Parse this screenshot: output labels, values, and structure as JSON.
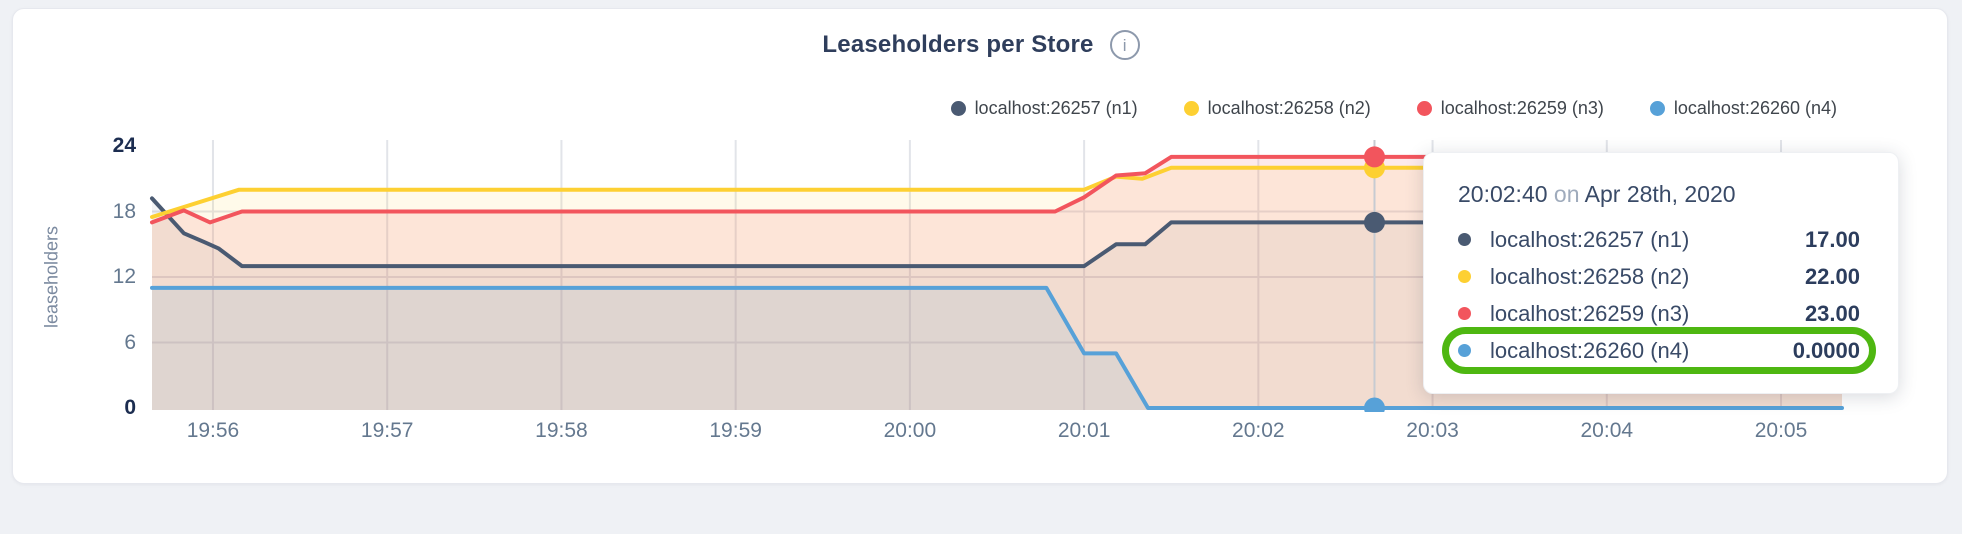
{
  "header": {
    "title": "Leaseholders per Store",
    "info_glyph": "i"
  },
  "legend": {
    "items": [
      {
        "label": "localhost:26257 (n1)",
        "color": "#4a5a72"
      },
      {
        "label": "localhost:26258 (n2)",
        "color": "#fdd032"
      },
      {
        "label": "localhost:26259 (n3)",
        "color": "#f2555d"
      },
      {
        "label": "localhost:26260 (n4)",
        "color": "#57a1d8"
      }
    ]
  },
  "chart_data": {
    "type": "line",
    "title": "Leaseholders per Store",
    "xlabel": "",
    "ylabel": "leaseholders",
    "ylim": [
      0,
      24
    ],
    "grid": true,
    "legend_position": "top-right",
    "x_domain": [
      "19:55:39",
      "20:05:21"
    ],
    "x_ticks": [
      "19:56",
      "19:57",
      "19:58",
      "19:59",
      "20:00",
      "20:01",
      "20:02",
      "20:03",
      "20:04",
      "20:05"
    ],
    "y_ticks": [
      {
        "label": "24",
        "value": 24,
        "strong": true
      },
      {
        "label": "18",
        "value": 18,
        "strong": false
      },
      {
        "label": "12",
        "value": 12,
        "strong": false
      },
      {
        "label": "6",
        "value": 6,
        "strong": false
      },
      {
        "label": "0",
        "value": 0,
        "strong": true
      }
    ],
    "series": [
      {
        "name": "localhost:26257 (n1)",
        "color": "#4a5a72",
        "fill_opacity": 0.07,
        "points": [
          [
            "19:55:39",
            19.2
          ],
          [
            "19:55:50",
            16
          ],
          [
            "19:55:57",
            15.2
          ],
          [
            "19:56:02",
            14.6
          ],
          [
            "19:56:10",
            13
          ],
          [
            "20:01:00",
            13
          ],
          [
            "20:01:11",
            15
          ],
          [
            "20:01:21",
            15
          ],
          [
            "20:01:30",
            17
          ],
          [
            "20:05:21",
            17
          ]
        ]
      },
      {
        "name": "localhost:26258 (n2)",
        "color": "#fdd032",
        "fill_opacity": 0.1,
        "points": [
          [
            "19:55:39",
            17.5
          ],
          [
            "19:56:09",
            20
          ],
          [
            "20:01:00",
            20
          ],
          [
            "20:01:11",
            21.2
          ],
          [
            "20:01:20",
            21
          ],
          [
            "20:01:30",
            22
          ],
          [
            "20:05:21",
            22
          ]
        ]
      },
      {
        "name": "localhost:26259 (n3)",
        "color": "#f2555d",
        "fill_opacity": 0.12,
        "points": [
          [
            "19:55:39",
            17
          ],
          [
            "19:55:50",
            18.1
          ],
          [
            "19:55:59",
            17
          ],
          [
            "19:56:10",
            18
          ],
          [
            "20:00:50",
            18
          ],
          [
            "20:01:00",
            19.3
          ],
          [
            "20:01:11",
            21.3
          ],
          [
            "20:01:21",
            21.5
          ],
          [
            "20:01:30",
            23
          ],
          [
            "20:05:21",
            23
          ]
        ]
      },
      {
        "name": "localhost:26260 (n4)",
        "color": "#57a1d8",
        "fill_opacity": 0.12,
        "points": [
          [
            "19:55:39",
            11
          ],
          [
            "20:00:47",
            11
          ],
          [
            "20:01:00",
            5
          ],
          [
            "20:01:11",
            5
          ],
          [
            "20:01:22",
            0
          ],
          [
            "20:05:21",
            0
          ]
        ]
      }
    ]
  },
  "tooltip": {
    "time": "20:02:40",
    "separator": "on",
    "date": "Apr 28th, 2020",
    "highlight_color": "#4eb711",
    "rows": [
      {
        "name": "localhost:26257 (n1)",
        "value": "17.00",
        "v": 17,
        "color": "#4a5a72",
        "highlighted": false
      },
      {
        "name": "localhost:26258 (n2)",
        "value": "22.00",
        "v": 22,
        "color": "#fdd032",
        "highlighted": false
      },
      {
        "name": "localhost:26259 (n3)",
        "value": "23.00",
        "v": 23,
        "color": "#f2555d",
        "highlighted": false
      },
      {
        "name": "localhost:26260 (n4)",
        "value": "0.0000",
        "v": 0,
        "color": "#57a1d8",
        "highlighted": true
      }
    ]
  }
}
